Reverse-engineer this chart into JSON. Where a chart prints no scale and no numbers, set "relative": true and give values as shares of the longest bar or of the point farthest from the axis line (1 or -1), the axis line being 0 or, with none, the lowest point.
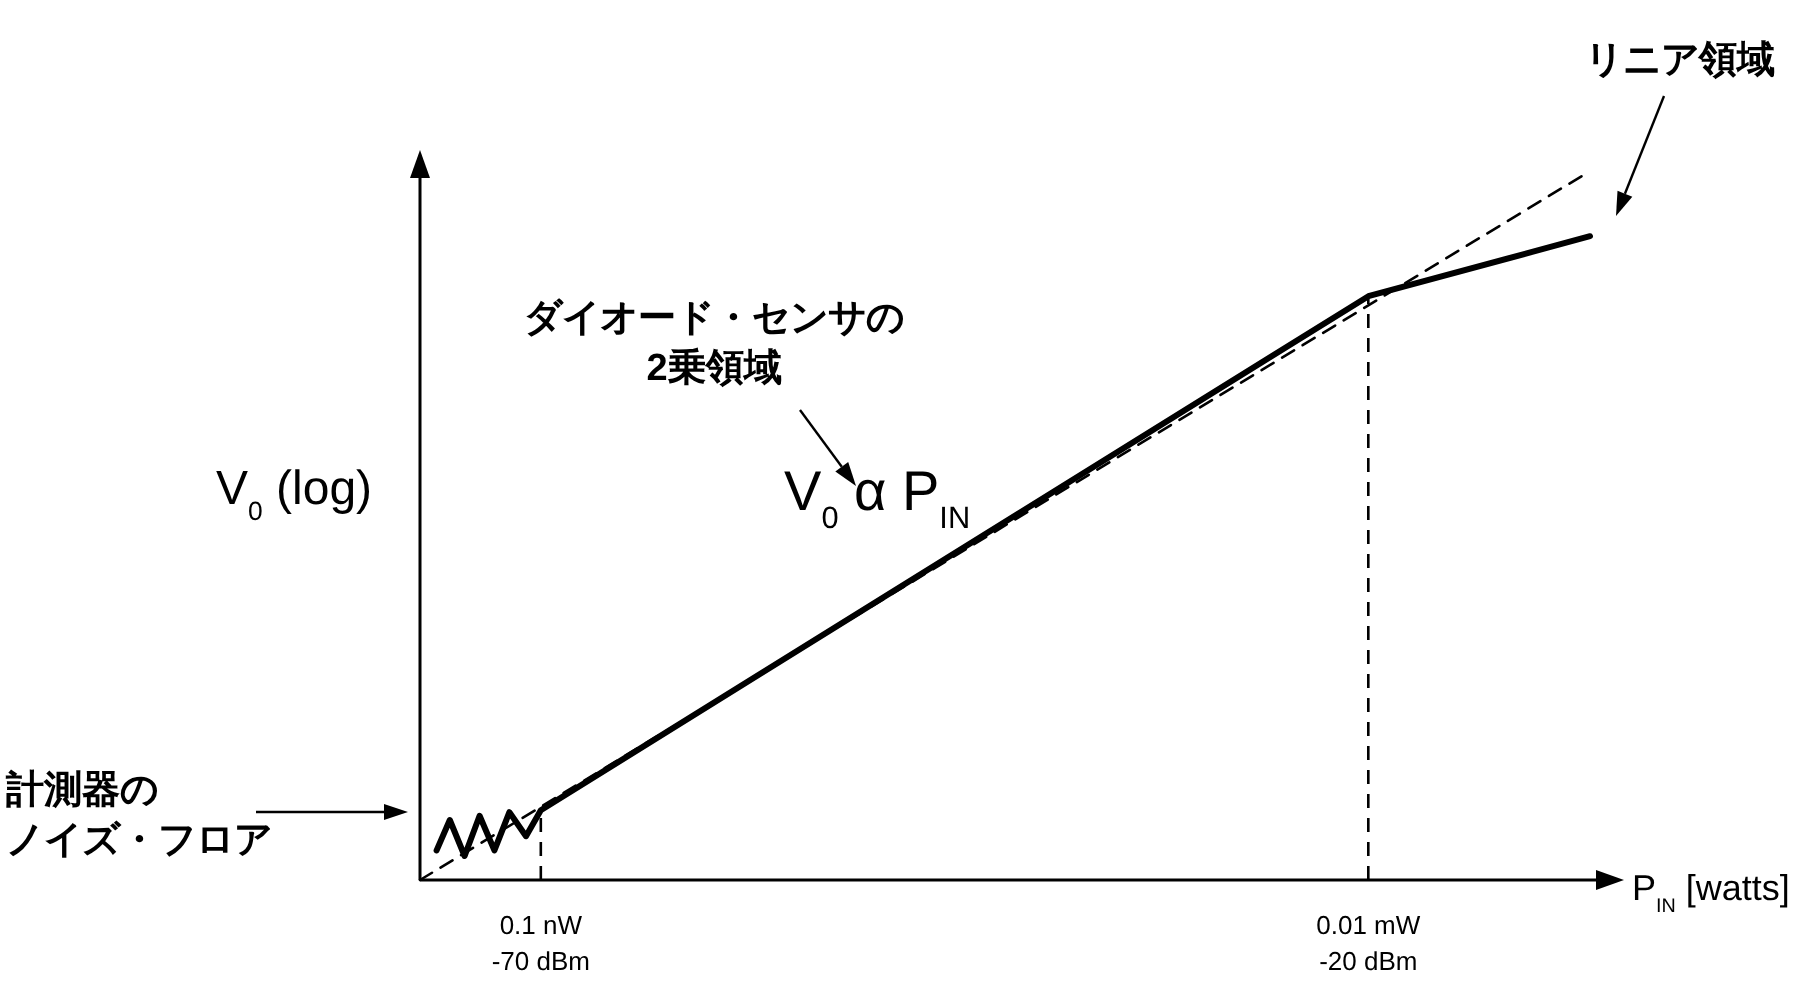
{
  "chart_data": {
    "type": "line",
    "relative": true,
    "xlabel": "P$_{IN}$ [watts]",
    "ylabel": "V$_{0}$ (log)",
    "xlim": [
      -77.3,
      -6.0
    ],
    "xticks": [
      {
        "value": -70,
        "label": "-70 dBm"
      },
      {
        "value": -20,
        "label": "-20 dBm"
      }
    ],
    "series": [
      {
        "color": "#000000",
        "line_style": "solid",
        "x": [
          -76.3,
          -75.5,
          -74.6,
          -73.7,
          -72.8,
          -71.9,
          -70.9,
          -70,
          -20,
          -6.6
        ],
        "values": [
          0.042,
          0.085,
          0.034,
          0.091,
          0.042,
          0.096,
          0.062,
          0.099,
          0.827,
          0.912
        ]
      },
      {
        "color": "#000000",
        "line_style": "dashed",
        "x": [
          -77.3,
          -6.9
        ],
        "values": [
          0,
          1
        ]
      }
    ],
    "ref_lines": [
      {
        "axis": "x",
        "value": -70,
        "line_style": "dashed"
      },
      {
        "axis": "x",
        "value": -20,
        "line_style": "dashed"
      }
    ],
    "annotations": [
      "ダイオード・センサの",
      "2乗領域",
      "V$_{0}$ α P$_{IN}$",
      "リニア領域",
      "計測器の",
      "ノイズ・フロア",
      {
        "text": "0.1 nW",
        "x": -70,
        "y": 0
      },
      {
        "text": "0.01 mW",
        "x": -20,
        "y": 0
      }
    ]
  }
}
